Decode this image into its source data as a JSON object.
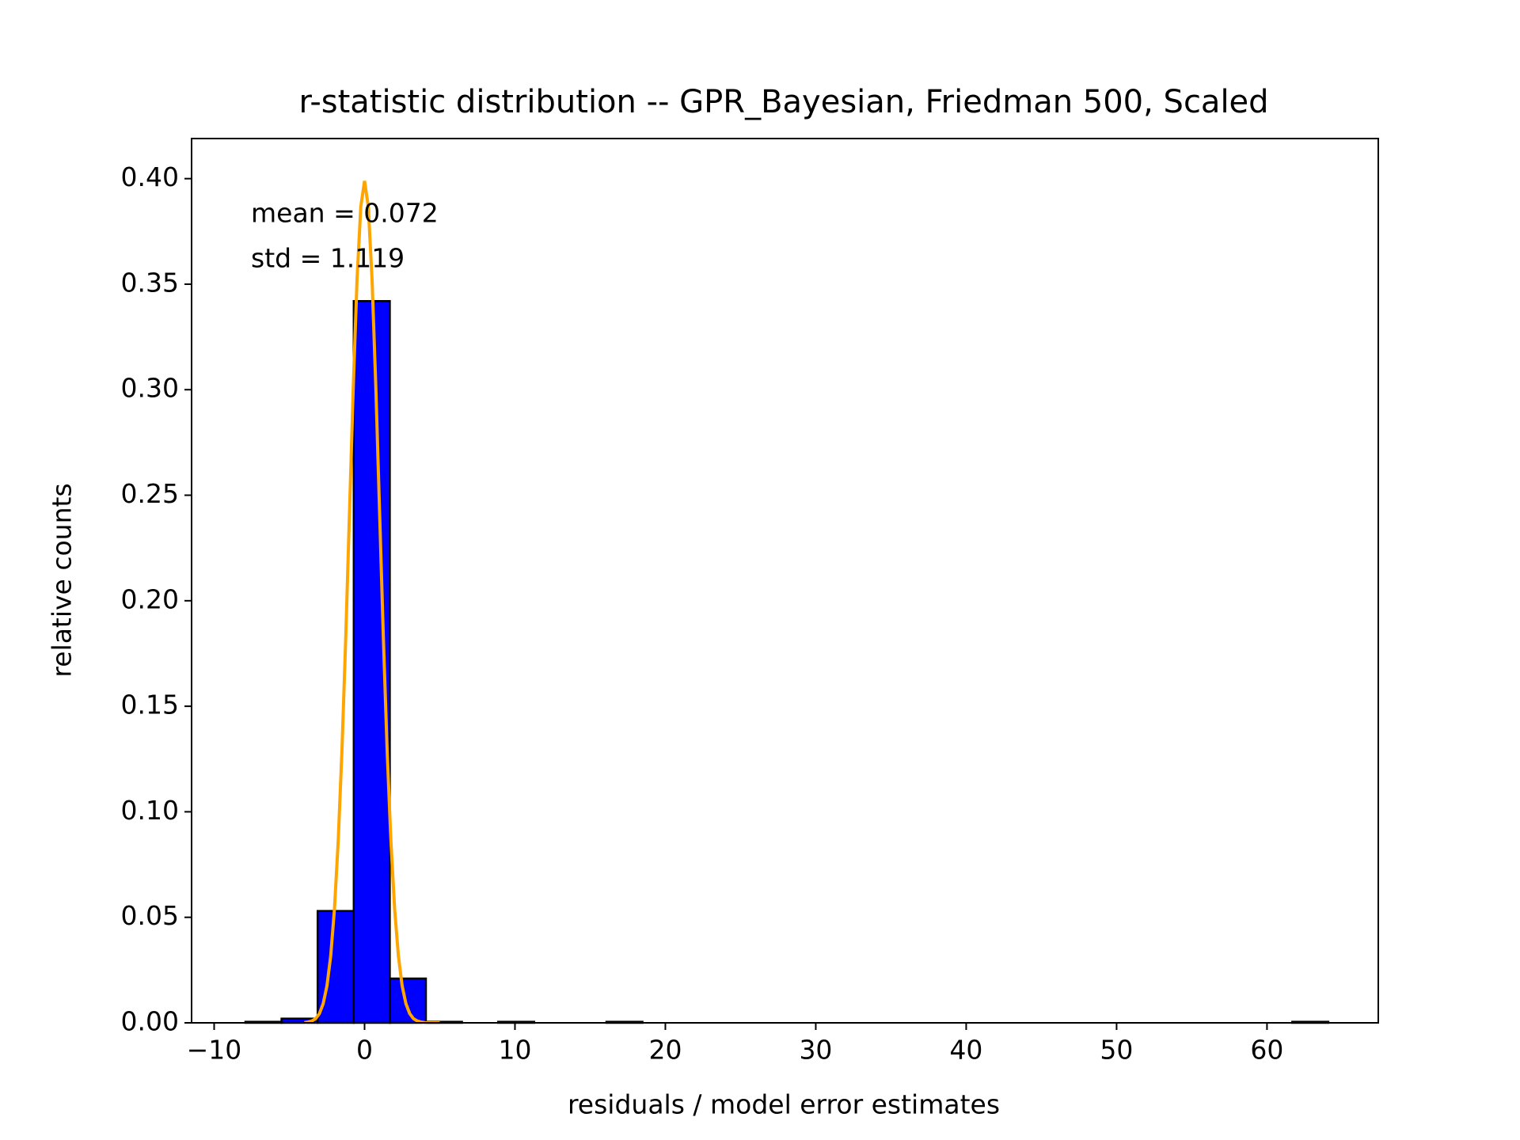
{
  "chart_data": {
    "type": "histogram",
    "title": "r-statistic distribution -- GPR_Bayesian, Friedman 500, Scaled",
    "xlabel": "residuals / model error estimates",
    "ylabel": "relative counts",
    "annotations": [
      "mean = 0.072",
      "std = 1.119"
    ],
    "bins": [
      -7.92,
      -5.52,
      -3.12,
      -0.72,
      1.68,
      4.08,
      6.48,
      8.88,
      11.28,
      13.68,
      16.08,
      18.48,
      20.88,
      23.28,
      25.68,
      28.08,
      30.48,
      32.88,
      35.28,
      37.68,
      40.08,
      42.48,
      44.88,
      47.28,
      49.68,
      52.08,
      54.48,
      56.88,
      59.28,
      61.68,
      64.08
    ],
    "values": [
      0.0005,
      0.002,
      0.053,
      0.342,
      0.021,
      0.0005,
      0,
      0.0005,
      0,
      0,
      0.0005,
      0,
      0,
      0,
      0,
      0,
      0,
      0,
      0,
      0,
      0,
      0,
      0,
      0,
      0,
      0,
      0,
      0,
      0,
      0.0005
    ],
    "color": "#0000ff",
    "edgecolor": "#000000",
    "curve": {
      "color": "#ffa500",
      "x": [
        -4,
        -3.75,
        -3.5,
        -3.25,
        -3,
        -2.75,
        -2.5,
        -2.25,
        -2,
        -1.75,
        -1.5,
        -1.25,
        -1,
        -0.75,
        -0.5,
        -0.25,
        0,
        0.25,
        0.5,
        0.75,
        1,
        1.25,
        1.5,
        1.75,
        2,
        2.25,
        2.5,
        2.75,
        3,
        3.25,
        3.5,
        3.75,
        4,
        4.25,
        4.5,
        4.75,
        5
      ],
      "values": [
        0.0001,
        0.0004,
        0.0009,
        0.002,
        0.0044,
        0.0091,
        0.0175,
        0.0317,
        0.054,
        0.0863,
        0.1295,
        0.1826,
        0.242,
        0.3011,
        0.3521,
        0.3867,
        0.3989,
        0.3867,
        0.3521,
        0.3011,
        0.242,
        0.1826,
        0.1295,
        0.0863,
        0.054,
        0.0317,
        0.0175,
        0.0091,
        0.0044,
        0.002,
        0.0009,
        0.0004,
        0.0001,
        0,
        0,
        0,
        0
      ]
    },
    "xlim": [
      -11.5,
      67.4
    ],
    "ylim": [
      0,
      0.419
    ],
    "xticks": [
      {
        "value": -10,
        "label": "−10"
      },
      0,
      10,
      20,
      30,
      40,
      50,
      60
    ],
    "yticks": [
      {
        "value": 0,
        "label": "0.00"
      },
      {
        "value": 0.05,
        "label": "0.05"
      },
      {
        "value": 0.1,
        "label": "0.10"
      },
      {
        "value": 0.15,
        "label": "0.15"
      },
      {
        "value": 0.2,
        "label": "0.20"
      },
      {
        "value": 0.25,
        "label": "0.25"
      },
      {
        "value": 0.3,
        "label": "0.30"
      },
      {
        "value": 0.35,
        "label": "0.35"
      },
      {
        "value": 0.4,
        "label": "0.40"
      }
    ],
    "grid": false
  }
}
